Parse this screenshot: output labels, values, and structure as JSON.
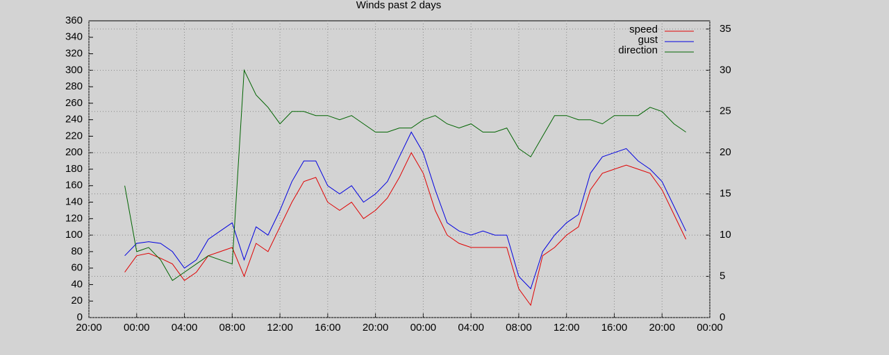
{
  "chart_data": {
    "type": "line",
    "title": "Winds past 2 days",
    "x": [
      3,
      4,
      5,
      6,
      7,
      8,
      9,
      10,
      11,
      12,
      13,
      14,
      15,
      16,
      17,
      18,
      19,
      20,
      21,
      22,
      23,
      24,
      25,
      26,
      27,
      28,
      29,
      30,
      31,
      32,
      33,
      34,
      35,
      36,
      37,
      38,
      39,
      40,
      41,
      42,
      43,
      44,
      45,
      46,
      47,
      48,
      49,
      50
    ],
    "xlim": [
      0,
      52
    ],
    "xticks": [
      {
        "value": 0,
        "label": "20:00"
      },
      {
        "value": 4,
        "label": "00:00"
      },
      {
        "value": 8,
        "label": "04:00"
      },
      {
        "value": 12,
        "label": "08:00"
      },
      {
        "value": 16,
        "label": "12:00"
      },
      {
        "value": 20,
        "label": "16:00"
      },
      {
        "value": 24,
        "label": "20:00"
      },
      {
        "value": 28,
        "label": "00:00"
      },
      {
        "value": 32,
        "label": "04:00"
      },
      {
        "value": 36,
        "label": "08:00"
      },
      {
        "value": 40,
        "label": "12:00"
      },
      {
        "value": 44,
        "label": "16:00"
      },
      {
        "value": 48,
        "label": "20:00"
      },
      {
        "value": 52,
        "label": "00:00"
      }
    ],
    "ylim": [
      0,
      360
    ],
    "yticks": [
      0,
      20,
      40,
      60,
      80,
      100,
      120,
      140,
      160,
      180,
      200,
      220,
      240,
      260,
      280,
      300,
      320,
      340,
      360
    ],
    "y2lim": [
      0,
      36
    ],
    "y2ticks": [
      0,
      5,
      10,
      15,
      20,
      25,
      30,
      35
    ],
    "grid": true,
    "legend": "top-right",
    "series": [
      {
        "name": "speed",
        "color": "#e00000",
        "axis": "y2",
        "values": [
          5.5,
          7.5,
          7.8,
          7.2,
          6.5,
          4.5,
          5.5,
          7.5,
          8.0,
          8.5,
          5.0,
          9.0,
          8.0,
          11,
          14,
          16.5,
          17,
          14,
          13,
          14,
          12,
          13,
          14.5,
          17,
          20,
          17.5,
          13,
          10,
          9,
          8.5,
          8.5,
          8.5,
          8.5,
          3.5,
          1.5,
          7.5,
          8.5,
          10,
          11,
          15.5,
          17.5,
          18,
          18.5,
          18,
          17.5,
          15.5,
          12.5,
          9.5
        ]
      },
      {
        "name": "gust",
        "color": "#0000e0",
        "axis": "y2",
        "values": [
          7.5,
          9,
          9.2,
          9,
          8,
          6,
          7,
          9.5,
          10.5,
          11.5,
          7,
          11,
          10,
          13,
          16.5,
          19,
          19,
          16,
          15,
          16,
          14,
          15,
          16.5,
          19.5,
          22.5,
          20,
          15.5,
          11.5,
          10.5,
          10,
          10.5,
          10,
          10,
          5,
          3.5,
          8,
          10,
          11.5,
          12.5,
          17.5,
          19.5,
          20,
          20.5,
          19,
          18,
          16.5,
          13.5,
          10.5
        ]
      },
      {
        "name": "direction",
        "color": "#006400",
        "values": [
          160,
          80,
          85,
          70,
          45,
          55,
          65,
          75,
          70,
          65,
          300,
          270,
          255,
          235,
          250,
          250,
          245,
          245,
          240,
          245,
          235,
          225,
          225,
          230,
          230,
          240,
          245,
          235,
          230,
          235,
          225,
          225,
          230,
          205,
          195,
          220,
          245,
          245,
          240,
          240,
          235,
          245,
          245,
          245,
          255,
          250,
          235,
          225
        ]
      }
    ]
  }
}
